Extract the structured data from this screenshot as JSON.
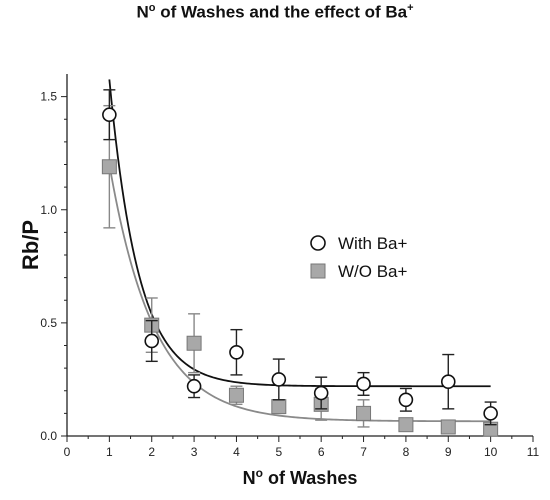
{
  "chart_data": {
    "type": "scatter",
    "title": {
      "prefix": "N",
      "sup": "o",
      "suffix": " of Washes and the effect of Ba",
      "sup2": "+"
    },
    "xlabel": {
      "prefix": "N",
      "sup": "o",
      "suffix": " of Washes"
    },
    "ylabel": "Rb/P",
    "xlim": [
      0,
      11
    ],
    "ylim": [
      0,
      1.6
    ],
    "xticks": [
      "0",
      "1",
      "2",
      "3",
      "4",
      "5",
      "6",
      "7",
      "8",
      "9",
      "10",
      "11"
    ],
    "yticks": [
      "0.0",
      "0.5",
      "1.0",
      "1.5"
    ],
    "grid": false,
    "legend_position": "center-right",
    "series": [
      {
        "name": "With Ba+",
        "marker": "open-circle",
        "color": "#000000",
        "x": [
          1,
          2,
          3,
          4,
          5,
          6,
          7,
          8,
          9,
          10
        ],
        "y": [
          1.42,
          0.42,
          0.22,
          0.37,
          0.25,
          0.19,
          0.23,
          0.16,
          0.24,
          0.1
        ],
        "err": [
          0.11,
          0.09,
          0.05,
          0.1,
          0.09,
          0.07,
          0.05,
          0.05,
          0.12,
          0.05
        ],
        "fit": {
          "y0": 6.0,
          "plateau": 0.22,
          "k": 1.45
        }
      },
      {
        "name": "W/O Ba+",
        "marker": "filled-square",
        "color": "#999999",
        "x": [
          1,
          2,
          3,
          4,
          5,
          6,
          7,
          8,
          9,
          10
        ],
        "y": [
          1.19,
          0.49,
          0.41,
          0.18,
          0.13,
          0.14,
          0.1,
          0.05,
          0.04,
          0.03
        ],
        "err": [
          0.27,
          0.12,
          0.13,
          0.04,
          0.03,
          0.07,
          0.06,
          0.02,
          0.02,
          0.02
        ],
        "fit": {
          "y0": 3.0,
          "plateau": 0.065,
          "k": 0.95
        }
      }
    ]
  }
}
